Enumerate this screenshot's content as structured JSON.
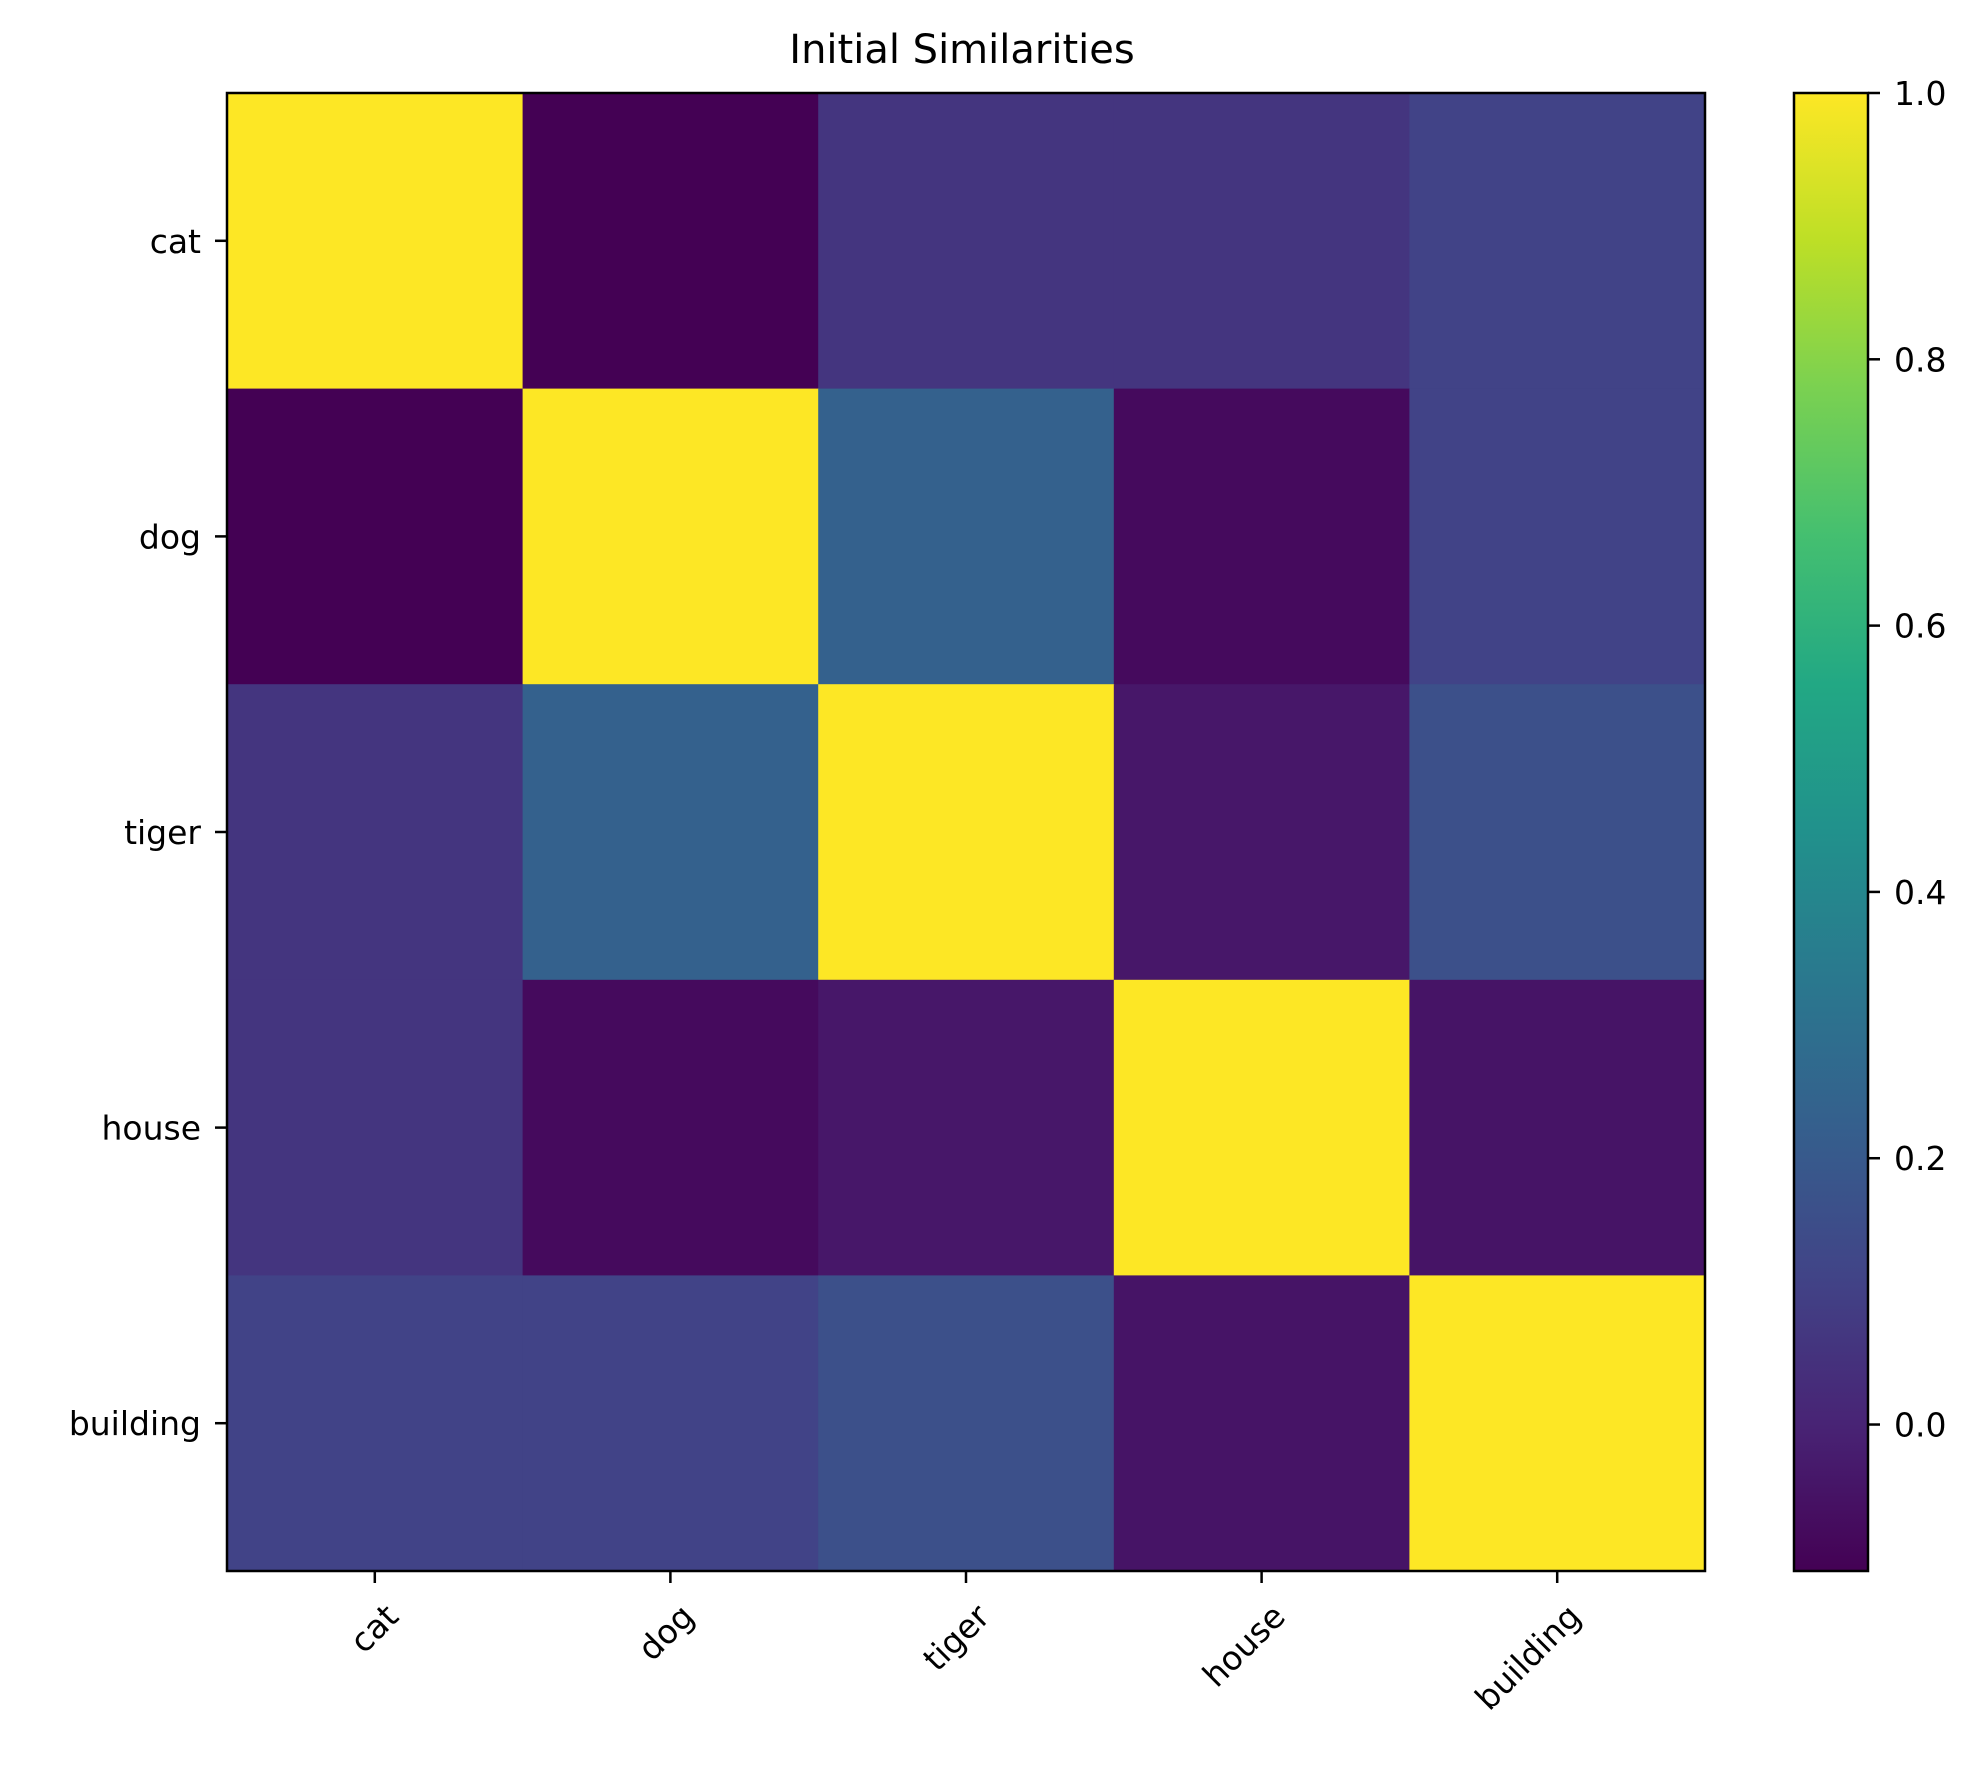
{
  "chart_data": {
    "type": "heatmap",
    "title": "Initial Similarities",
    "xlabel": "",
    "ylabel": "",
    "x_categories": [
      "cat",
      "dog",
      "tiger",
      "house",
      "building"
    ],
    "y_categories": [
      "cat",
      "dog",
      "tiger",
      "house",
      "building"
    ],
    "values": [
      [
        1.0,
        -0.11,
        0.06,
        0.06,
        0.11
      ],
      [
        -0.11,
        1.0,
        0.23,
        -0.08,
        0.11
      ],
      [
        0.06,
        0.23,
        1.0,
        -0.04,
        0.16
      ],
      [
        0.06,
        -0.08,
        -0.04,
        1.0,
        -0.05
      ],
      [
        0.11,
        0.11,
        0.16,
        -0.05,
        1.0
      ]
    ],
    "colormap": "viridis",
    "vmin": -0.11,
    "vmax": 1.0,
    "colorbar_ticks": [
      "0.0",
      "0.2",
      "0.4",
      "0.6",
      "0.8",
      "1.0"
    ],
    "colorbar_tick_values": [
      0.0,
      0.2,
      0.4,
      0.6,
      0.8,
      1.0
    ],
    "x_tick_rotation_deg": 45,
    "grid": false
  }
}
